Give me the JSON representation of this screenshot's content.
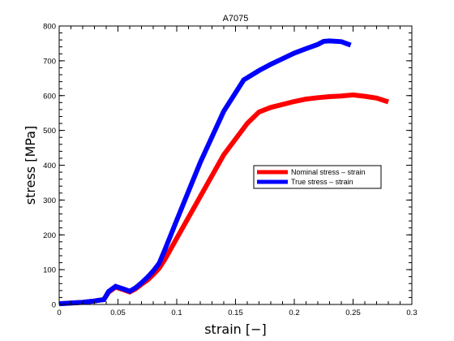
{
  "chart_data": {
    "type": "line",
    "title": "A7075",
    "xlabel": "strain [−]",
    "ylabel": "stress [MPa]",
    "xlim": [
      0,
      0.3
    ],
    "ylim": [
      0,
      800
    ],
    "xticks": [
      0,
      0.05,
      0.1,
      0.15,
      0.2,
      0.25,
      0.3
    ],
    "xtick_labels": [
      "0",
      "0.05",
      "0.1",
      "0.15",
      "0.2",
      "0.25",
      "0.3"
    ],
    "yticks": [
      0,
      100,
      200,
      300,
      400,
      500,
      600,
      700,
      800
    ],
    "ytick_labels": [
      "0",
      "100",
      "200",
      "300",
      "400",
      "500",
      "600",
      "700",
      "800"
    ],
    "grid": false,
    "legend_position": "right-middle",
    "series": [
      {
        "name": "Nominal stress – strain",
        "color": "#ff0000",
        "x": [
          0,
          0.01,
          0.02,
          0.03,
          0.038,
          0.042,
          0.048,
          0.055,
          0.06,
          0.065,
          0.07,
          0.075,
          0.08,
          0.085,
          0.09,
          0.1,
          0.12,
          0.14,
          0.16,
          0.17,
          0.18,
          0.2,
          0.21,
          0.22,
          0.23,
          0.24,
          0.25,
          0.26,
          0.27,
          0.28
        ],
        "y": [
          2,
          4,
          6,
          10,
          14,
          35,
          50,
          42,
          36,
          45,
          58,
          70,
          86,
          104,
          130,
          190,
          310,
          430,
          520,
          553,
          566,
          583,
          590,
          594,
          597,
          599,
          602,
          598,
          593,
          582
        ]
      },
      {
        "name": "True stress – strain",
        "color": "#0000ff",
        "x": [
          0,
          0.01,
          0.02,
          0.03,
          0.038,
          0.042,
          0.048,
          0.055,
          0.06,
          0.065,
          0.07,
          0.075,
          0.08,
          0.085,
          0.09,
          0.1,
          0.12,
          0.14,
          0.157,
          0.17,
          0.18,
          0.19,
          0.2,
          0.21,
          0.22,
          0.225,
          0.23,
          0.24,
          0.248
        ],
        "y": [
          2,
          4,
          6,
          10,
          14,
          37,
          52,
          44,
          38,
          48,
          62,
          78,
          96,
          118,
          158,
          242,
          408,
          555,
          645,
          672,
          690,
          706,
          722,
          735,
          747,
          756,
          757,
          755,
          745
        ]
      }
    ]
  }
}
